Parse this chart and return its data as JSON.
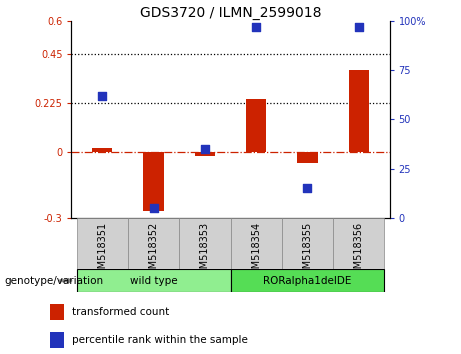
{
  "title": "GDS3720 / ILMN_2599018",
  "samples": [
    "GSM518351",
    "GSM518352",
    "GSM518353",
    "GSM518354",
    "GSM518355",
    "GSM518356"
  ],
  "red_bars": [
    0.018,
    -0.27,
    -0.018,
    0.245,
    -0.05,
    0.375
  ],
  "blue_dots_right": [
    62,
    5,
    35,
    97,
    15,
    97
  ],
  "ylim_left": [
    -0.3,
    0.6
  ],
  "ylim_right": [
    0,
    100
  ],
  "yticks_left": [
    -0.3,
    0.0,
    0.225,
    0.45,
    0.6
  ],
  "yticks_right": [
    0,
    25,
    50,
    75,
    100
  ],
  "ytick_labels_left": [
    "-0.3",
    "0",
    "0.225",
    "0.45",
    "0.6"
  ],
  "ytick_labels_right": [
    "0",
    "25",
    "50",
    "75",
    "100%"
  ],
  "hlines": [
    0.45,
    0.225
  ],
  "bar_color": "#cc2200",
  "dot_color": "#2233bb",
  "bar_width": 0.4,
  "dot_size": 35,
  "group_wt_label": "wild type",
  "group_ror_label": "RORalpha1delDE",
  "group_wt_color": "#90ee90",
  "group_ror_color": "#55dd55",
  "group_box_color": "#d0d0d0",
  "genotype_label": "genotype/variation",
  "legend_red_label": "transformed count",
  "legend_blue_label": "percentile rank within the sample",
  "title_fontsize": 10,
  "tick_fontsize": 7,
  "label_fontsize": 7.5,
  "left_tick_color": "#cc2200",
  "right_tick_color": "#2233bb"
}
